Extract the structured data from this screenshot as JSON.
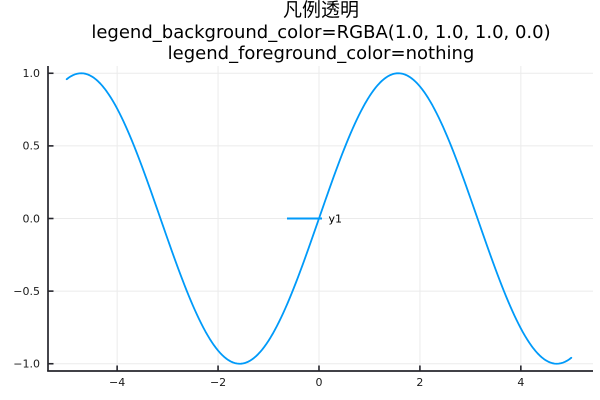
{
  "title": {
    "line1": "凡例透明",
    "line2": "legend_background_color=RGBA(1.0, 1.0, 1.0, 0.0)",
    "line3": "legend_foreground_color=nothing"
  },
  "chart_data": {
    "type": "line",
    "title": "凡例透明\nlegend_background_color=RGBA(1.0, 1.0, 1.0, 0.0)\nlegend_foreground_color=nothing",
    "xlabel": "",
    "ylabel": "",
    "xlim": [
      -5.37,
      5.43
    ],
    "ylim": [
      -1.05,
      1.05
    ],
    "grid": true,
    "grid_color": "#ebebeb",
    "axis_color": "#26262d",
    "tick_label_color": "#1a1a1a",
    "xticks": {
      "values": [
        -4,
        -2,
        0,
        2,
        4
      ],
      "labels": [
        "−4",
        "−2",
        "0",
        "2",
        "4"
      ]
    },
    "yticks": {
      "values": [
        -1.0,
        -0.5,
        0.0,
        0.5,
        1.0
      ],
      "labels": [
        "−1.0",
        "−0.5",
        "0.0",
        "0.5",
        "1.0"
      ]
    },
    "series": [
      {
        "name": "y1",
        "fn": "sin",
        "x_min": -5,
        "x_max": 5,
        "samples": 241,
        "color": "#009af9",
        "line_width": 1.8
      }
    ],
    "legend": {
      "position": "center",
      "background_color": "rgba(255,255,255,0)",
      "border_color": "none",
      "entries": [
        {
          "label": "y1",
          "color": "#009af9"
        }
      ]
    }
  }
}
